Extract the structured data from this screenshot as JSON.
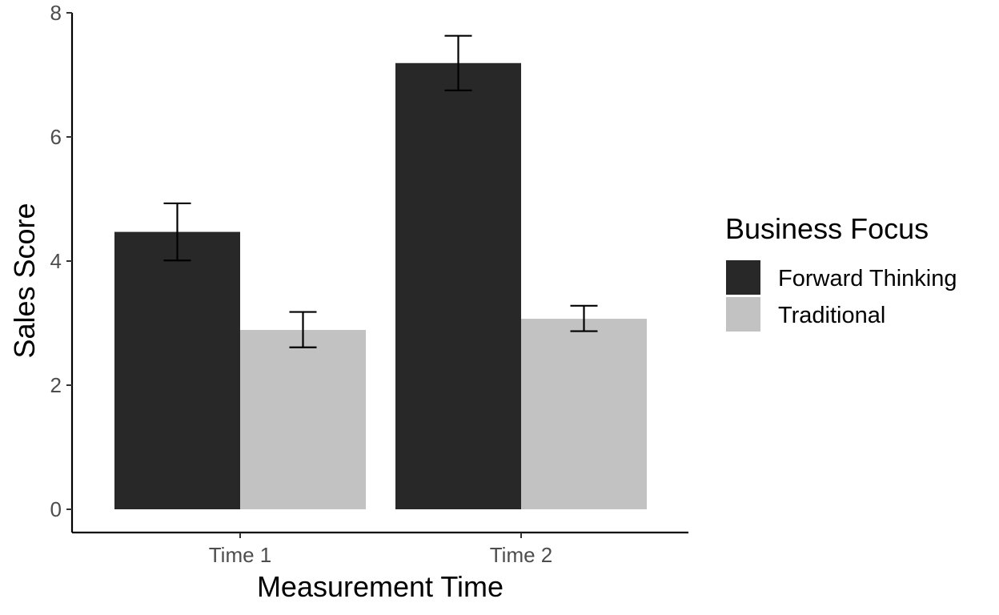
{
  "chart_data": {
    "type": "bar",
    "title": "",
    "xlabel": "Measurement Time",
    "ylabel": "Sales Score",
    "categories": [
      "Time 1",
      "Time 2"
    ],
    "ylim": [
      0,
      8
    ],
    "yticks": [
      0,
      2,
      4,
      6,
      8
    ],
    "grid": false,
    "legend": {
      "title": "Business Focus",
      "position": "right"
    },
    "series": [
      {
        "name": "Forward Thinking",
        "color": "#282828",
        "values": [
          4.47,
          7.19
        ],
        "error_low": [
          4.01,
          6.75
        ],
        "error_high": [
          4.93,
          7.63
        ]
      },
      {
        "name": "Traditional",
        "color": "#c2c2c2",
        "values": [
          2.89,
          3.07
        ],
        "error_low": [
          2.61,
          2.87
        ],
        "error_high": [
          3.18,
          3.28
        ]
      }
    ]
  }
}
